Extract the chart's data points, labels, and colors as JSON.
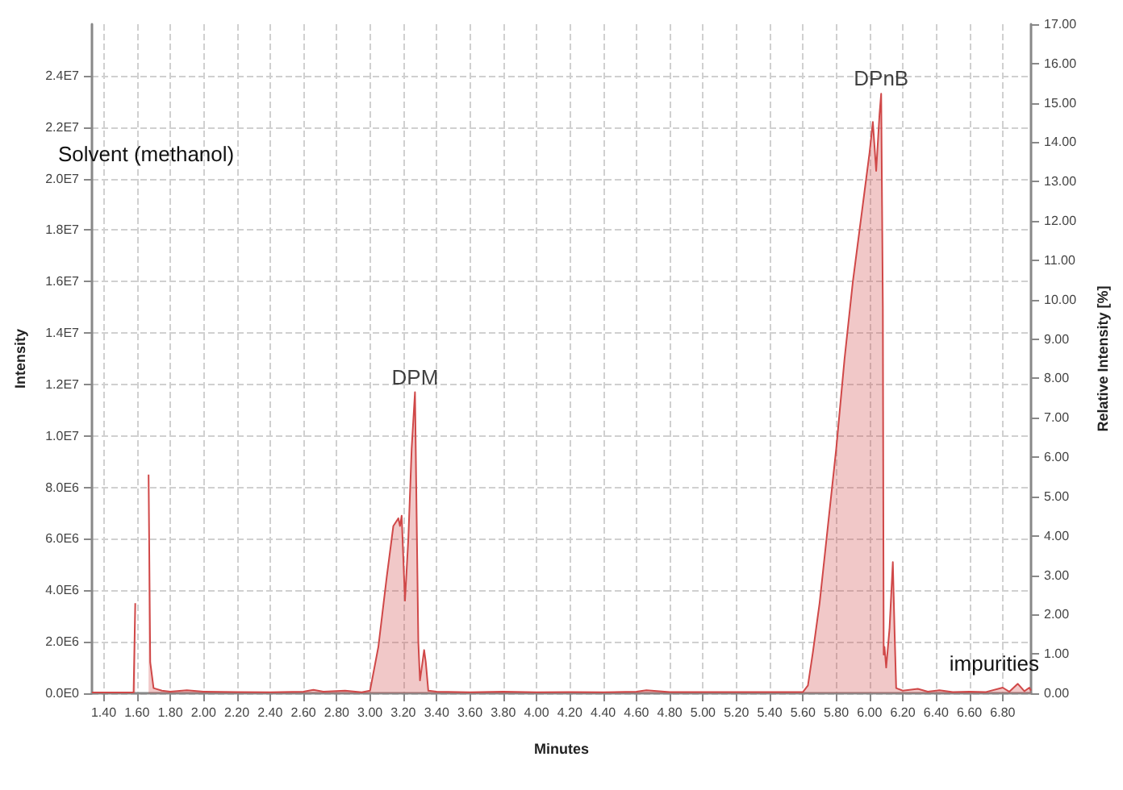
{
  "chart_data": {
    "type": "area",
    "xlabel": "Minutes",
    "ylabel": "Intensity",
    "y2label": "Relative Intensity [%]",
    "xlim": [
      1.33,
      6.97
    ],
    "xticks": [
      {
        "value": 1.4,
        "label": "1.40"
      },
      {
        "value": 1.6,
        "label": "1.60"
      },
      {
        "value": 1.8,
        "label": "1.80"
      },
      {
        "value": 2.0,
        "label": "2.00"
      },
      {
        "value": 2.2,
        "label": "2.20"
      },
      {
        "value": 2.4,
        "label": "2.40"
      },
      {
        "value": 2.6,
        "label": "2.60"
      },
      {
        "value": 2.8,
        "label": "2.80"
      },
      {
        "value": 3.0,
        "label": "3.00"
      },
      {
        "value": 3.2,
        "label": "3.20"
      },
      {
        "value": 3.4,
        "label": "3.40"
      },
      {
        "value": 3.6,
        "label": "3.60"
      },
      {
        "value": 3.8,
        "label": "3.80"
      },
      {
        "value": 4.0,
        "label": "4.00"
      },
      {
        "value": 4.2,
        "label": "4.20"
      },
      {
        "value": 4.4,
        "label": "4.40"
      },
      {
        "value": 4.6,
        "label": "4.60"
      },
      {
        "value": 4.8,
        "label": "4.80"
      },
      {
        "value": 5.0,
        "label": "5.00"
      },
      {
        "value": 5.2,
        "label": "5.20"
      },
      {
        "value": 5.4,
        "label": "5.40"
      },
      {
        "value": 5.6,
        "label": "5.60"
      },
      {
        "value": 5.8,
        "label": "5.80"
      },
      {
        "value": 6.0,
        "label": "6.00"
      },
      {
        "value": 6.2,
        "label": "6.20"
      },
      {
        "value": 6.4,
        "label": "6.40"
      },
      {
        "value": 6.6,
        "label": "6.60"
      },
      {
        "value": 6.8,
        "label": "6.80"
      }
    ],
    "ylim": [
      0,
      26000000
    ],
    "yticks": [
      {
        "value": 0,
        "label": "0.0E0"
      },
      {
        "value": 2000000,
        "label": "2.0E6"
      },
      {
        "value": 4000000,
        "label": "4.0E6"
      },
      {
        "value": 6000000,
        "label": "6.0E6"
      },
      {
        "value": 8000000,
        "label": "8.0E6"
      },
      {
        "value": 10000000,
        "label": "1.0E7"
      },
      {
        "value": 12000000,
        "label": "1.2E7"
      },
      {
        "value": 14000000,
        "label": "1.4E7"
      },
      {
        "value": 16000000,
        "label": "1.6E7"
      },
      {
        "value": 18000000,
        "label": "1.8E7"
      },
      {
        "value": 20000000,
        "label": "2.0E7"
      },
      {
        "value": 22000000,
        "label": "2.2E7"
      },
      {
        "value": 24000000,
        "label": "2.4E7"
      }
    ],
    "y2lim": [
      0,
      17
    ],
    "y2ticks": [
      {
        "value": 0,
        "label": "0.00"
      },
      {
        "value": 1,
        "label": "1.00"
      },
      {
        "value": 2,
        "label": "2.00"
      },
      {
        "value": 3,
        "label": "3.00"
      },
      {
        "value": 4,
        "label": "4.00"
      },
      {
        "value": 5,
        "label": "5.00"
      },
      {
        "value": 6,
        "label": "6.00"
      },
      {
        "value": 7,
        "label": "7.00"
      },
      {
        "value": 8,
        "label": "8.00"
      },
      {
        "value": 9,
        "label": "9.00"
      },
      {
        "value": 10,
        "label": "10.00"
      },
      {
        "value": 11,
        "label": "11.00"
      },
      {
        "value": 12,
        "label": "12.00"
      },
      {
        "value": 13,
        "label": "13.00"
      },
      {
        "value": 14,
        "label": "14.00"
      },
      {
        "value": 15,
        "label": "15.00"
      },
      {
        "value": 16,
        "label": "16.00"
      },
      {
        "value": 17,
        "label": "17.00"
      }
    ],
    "grid": true,
    "annotations": [
      "Solvent (methanol)",
      {
        "text": "DPM",
        "x": 3.27,
        "y": 11700000
      },
      {
        "text": "DPnB",
        "x": 6.07,
        "y": 23300000
      },
      "impurities"
    ],
    "series": [
      {
        "color": "#d04848",
        "x": [
          1.33,
          1.5,
          1.58,
          1.59,
          1.6,
          1.665,
          1.67,
          1.68,
          1.7,
          1.75,
          1.8,
          1.9,
          2.0,
          2.2,
          2.4,
          2.6,
          2.66,
          2.72,
          2.85,
          2.95,
          3.0,
          3.05,
          3.1,
          3.14,
          3.17,
          3.18,
          3.19,
          3.21,
          3.23,
          3.25,
          3.27,
          3.29,
          3.3,
          3.315,
          3.325,
          3.335,
          3.35,
          3.4,
          3.6,
          3.8,
          4.0,
          4.2,
          4.4,
          4.6,
          4.66,
          4.8,
          5.0,
          5.2,
          5.4,
          5.6,
          5.63,
          5.66,
          5.7,
          5.75,
          5.8,
          5.85,
          5.9,
          5.94,
          5.97,
          6.0,
          6.02,
          6.04,
          6.06,
          6.07,
          6.08,
          6.085,
          6.09,
          6.1,
          6.12,
          6.14,
          6.15,
          6.16,
          6.2,
          6.29,
          6.35,
          6.42,
          6.5,
          6.6,
          6.7,
          6.8,
          6.84,
          6.89,
          6.93,
          6.96,
          6.97
        ],
        "values": [
          30000,
          30000,
          30000,
          3500000,
          null,
          null,
          8500000,
          1200000,
          200000,
          100000,
          60000,
          120000,
          60000,
          50000,
          40000,
          60000,
          130000,
          60000,
          100000,
          40000,
          100000,
          1800000,
          4500000,
          6500000,
          6800000,
          6500000,
          6900000,
          3600000,
          6000000,
          9500000,
          11700000,
          2000000,
          500000,
          1200000,
          1680000,
          1200000,
          100000,
          60000,
          40000,
          60000,
          40000,
          50000,
          40000,
          60000,
          120000,
          50000,
          50000,
          50000,
          50000,
          50000,
          300000,
          1600000,
          3500000,
          6500000,
          9500000,
          13000000,
          16000000,
          18000000,
          19500000,
          21000000,
          22200000,
          20300000,
          22500000,
          23300000,
          15000000,
          1500000,
          1800000,
          1000000,
          2500000,
          5100000,
          2500000,
          200000,
          100000,
          170000,
          60000,
          120000,
          50000,
          60000,
          50000,
          220000,
          60000,
          370000,
          80000,
          220000,
          100000
        ]
      }
    ]
  }
}
